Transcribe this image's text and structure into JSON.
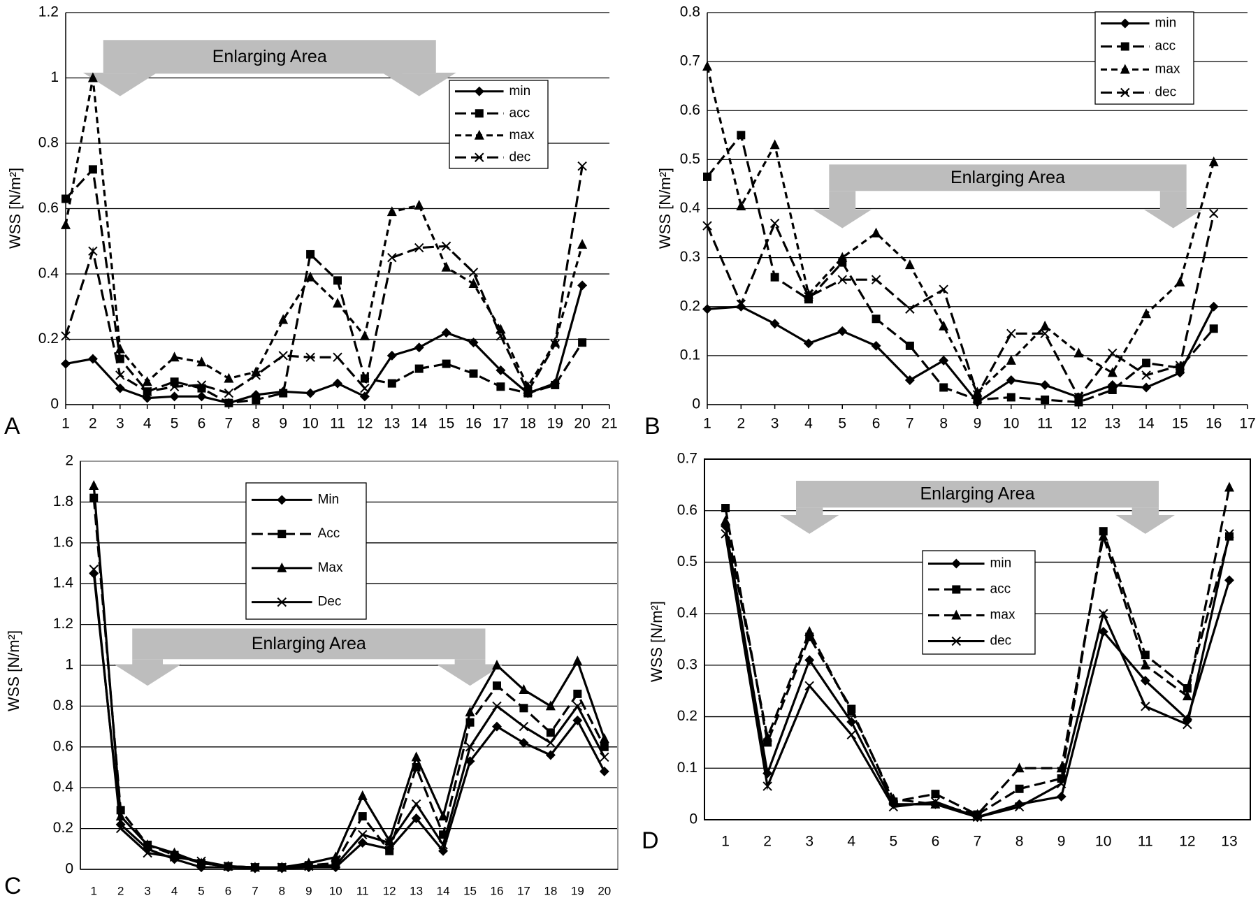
{
  "chart_data": [
    {
      "type": "line",
      "panel": "A",
      "ylabel": "WSS [N/m²]",
      "annotation": "Enlarging Area",
      "x": [
        1,
        2,
        3,
        4,
        5,
        6,
        7,
        8,
        9,
        10,
        11,
        12,
        13,
        14,
        15,
        16,
        17,
        18,
        19,
        20
      ],
      "xlim": [
        1,
        21
      ],
      "xticks": [
        1,
        2,
        3,
        4,
        5,
        6,
        7,
        8,
        9,
        10,
        11,
        12,
        13,
        14,
        15,
        16,
        17,
        18,
        19,
        20,
        21
      ],
      "ylim": [
        0,
        1.2
      ],
      "yticks": [
        0,
        0.2,
        0.4,
        0.6,
        0.8,
        1,
        1.2
      ],
      "grid": true,
      "series": [
        {
          "name": "min",
          "color": "#000000",
          "marker": "diamond",
          "dash": "solid",
          "values": [
            0.125,
            0.14,
            0.05,
            0.02,
            0.025,
            0.025,
            0.005,
            0.03,
            0.04,
            0.035,
            0.065,
            0.025,
            0.15,
            0.175,
            0.22,
            0.19,
            0.105,
            0.035,
            0.065,
            0.365
          ]
        },
        {
          "name": "acc",
          "color": "#000000",
          "marker": "square",
          "dash": "long",
          "values": [
            0.63,
            0.72,
            0.14,
            0.04,
            0.07,
            0.05,
            0.005,
            0.015,
            0.035,
            0.46,
            0.38,
            0.08,
            0.065,
            0.11,
            0.125,
            0.095,
            0.055,
            0.035,
            0.06,
            0.19
          ]
        },
        {
          "name": "max",
          "color": "#000000",
          "marker": "triangle",
          "dash": "short",
          "values": [
            0.55,
            1.0,
            0.17,
            0.07,
            0.145,
            0.13,
            0.08,
            0.1,
            0.26,
            0.39,
            0.31,
            0.21,
            0.59,
            0.61,
            0.42,
            0.37,
            0.23,
            0.055,
            0.19,
            0.49
          ]
        },
        {
          "name": "dec",
          "color": "#000000",
          "marker": "x",
          "dash": "long",
          "values": [
            0.21,
            0.47,
            0.09,
            0.04,
            0.055,
            0.06,
            0.035,
            0.09,
            0.15,
            0.145,
            0.145,
            0.05,
            0.45,
            0.48,
            0.485,
            0.405,
            0.21,
            0.04,
            0.185,
            0.73
          ]
        }
      ]
    },
    {
      "type": "line",
      "panel": "B",
      "ylabel": "WSS [N/m²]",
      "annotation": "Enlarging Area",
      "x": [
        1,
        2,
        3,
        4,
        5,
        6,
        7,
        8,
        9,
        10,
        11,
        12,
        13,
        14,
        15,
        16
      ],
      "xlim": [
        1,
        17
      ],
      "xticks": [
        1,
        2,
        3,
        4,
        5,
        6,
        7,
        8,
        9,
        10,
        11,
        12,
        13,
        14,
        15,
        16,
        17
      ],
      "ylim": [
        0,
        0.8
      ],
      "yticks": [
        0,
        0.1,
        0.2,
        0.3,
        0.4,
        0.5,
        0.6,
        0.7,
        0.8
      ],
      "grid": true,
      "series": [
        {
          "name": "min",
          "color": "#000000",
          "marker": "diamond",
          "dash": "solid",
          "values": [
            0.195,
            0.2,
            0.165,
            0.125,
            0.15,
            0.12,
            0.05,
            0.09,
            0.005,
            0.05,
            0.04,
            0.015,
            0.04,
            0.035,
            0.065,
            0.2
          ]
        },
        {
          "name": "acc",
          "color": "#000000",
          "marker": "square",
          "dash": "long",
          "values": [
            0.465,
            0.55,
            0.26,
            0.215,
            0.29,
            0.175,
            0.12,
            0.035,
            0.01,
            0.015,
            0.01,
            0.005,
            0.03,
            0.085,
            0.075,
            0.155
          ]
        },
        {
          "name": "max",
          "color": "#000000",
          "marker": "triangle",
          "dash": "short",
          "values": [
            0.69,
            0.405,
            0.53,
            0.225,
            0.3,
            0.35,
            0.285,
            0.16,
            0.025,
            0.09,
            0.16,
            0.105,
            0.065,
            0.185,
            0.25,
            0.495
          ]
        },
        {
          "name": "dec",
          "color": "#000000",
          "marker": "x",
          "dash": "long",
          "values": [
            0.365,
            0.205,
            0.37,
            0.22,
            0.255,
            0.255,
            0.195,
            0.235,
            0.02,
            0.145,
            0.145,
            0.015,
            0.105,
            0.06,
            0.08,
            0.39
          ]
        }
      ]
    },
    {
      "type": "line",
      "panel": "C",
      "ylabel": "WSS [N/m²]",
      "annotation": "Enlarging Area",
      "categories": [
        "1",
        "2",
        "3",
        "4",
        "5",
        "6",
        "7",
        "8",
        "9",
        "10",
        "11",
        "12",
        "13",
        "14",
        "15",
        "16",
        "17",
        "18",
        "19",
        "20"
      ],
      "ylim": [
        0,
        2
      ],
      "yticks": [
        0,
        0.2,
        0.4,
        0.6,
        0.8,
        1,
        1.2,
        1.4,
        1.6,
        1.8,
        2
      ],
      "grid": true,
      "series": [
        {
          "name": "Min",
          "color": "#000000",
          "marker": "diamond",
          "dash": "solid",
          "values": [
            1.45,
            0.22,
            0.1,
            0.05,
            0.01,
            0.01,
            0.005,
            0.005,
            0.01,
            0.01,
            0.13,
            0.1,
            0.25,
            0.09,
            0.53,
            0.7,
            0.62,
            0.56,
            0.73,
            0.48
          ]
        },
        {
          "name": "Acc",
          "color": "#000000",
          "marker": "square",
          "dash": "long",
          "values": [
            1.82,
            0.29,
            0.12,
            0.07,
            0.03,
            0.015,
            0.01,
            0.01,
            0.02,
            0.03,
            0.26,
            0.09,
            0.5,
            0.17,
            0.72,
            0.9,
            0.79,
            0.67,
            0.86,
            0.6
          ]
        },
        {
          "name": "Max",
          "color": "#000000",
          "marker": "triangle",
          "dash": "solid",
          "values": [
            1.88,
            0.26,
            0.12,
            0.08,
            0.03,
            0.015,
            0.01,
            0.01,
            0.03,
            0.06,
            0.36,
            0.14,
            0.55,
            0.26,
            0.77,
            1.0,
            0.88,
            0.8,
            1.02,
            0.64
          ]
        },
        {
          "name": "Dec",
          "color": "#000000",
          "marker": "x",
          "dash": "solid",
          "values": [
            1.47,
            0.2,
            0.08,
            0.06,
            0.04,
            0.015,
            0.01,
            0.01,
            0.015,
            0.02,
            0.17,
            0.13,
            0.32,
            0.12,
            0.6,
            0.8,
            0.7,
            0.62,
            0.8,
            0.55
          ]
        }
      ]
    },
    {
      "type": "line",
      "panel": "D",
      "ylabel": "WSS [N/m²]",
      "annotation": "Enlarging Area",
      "categories": [
        "1",
        "2",
        "3",
        "4",
        "5",
        "6",
        "7",
        "8",
        "9",
        "10",
        "11",
        "12",
        "13"
      ],
      "ylim": [
        0,
        0.7
      ],
      "yticks": [
        0,
        0.1,
        0.2,
        0.3,
        0.4,
        0.5,
        0.6,
        0.7
      ],
      "grid": true,
      "series": [
        {
          "name": "min",
          "color": "#000000",
          "marker": "diamond",
          "dash": "solid",
          "values": [
            0.57,
            0.09,
            0.31,
            0.19,
            0.03,
            0.03,
            0.005,
            0.03,
            0.045,
            0.365,
            0.27,
            0.195,
            0.465
          ]
        },
        {
          "name": "acc",
          "color": "#000000",
          "marker": "square",
          "dash": "long",
          "values": [
            0.605,
            0.15,
            0.355,
            0.215,
            0.035,
            0.05,
            0.01,
            0.06,
            0.08,
            0.56,
            0.32,
            0.255,
            0.55
          ]
        },
        {
          "name": "max",
          "color": "#000000",
          "marker": "triangle",
          "dash": "long",
          "values": [
            0.58,
            0.16,
            0.365,
            0.21,
            0.04,
            0.03,
            0.01,
            0.1,
            0.1,
            0.55,
            0.3,
            0.24,
            0.645
          ]
        },
        {
          "name": "dec",
          "color": "#000000",
          "marker": "x",
          "dash": "solid",
          "values": [
            0.555,
            0.065,
            0.26,
            0.165,
            0.025,
            0.035,
            0.005,
            0.025,
            0.07,
            0.4,
            0.22,
            0.185,
            0.555
          ]
        }
      ]
    }
  ]
}
